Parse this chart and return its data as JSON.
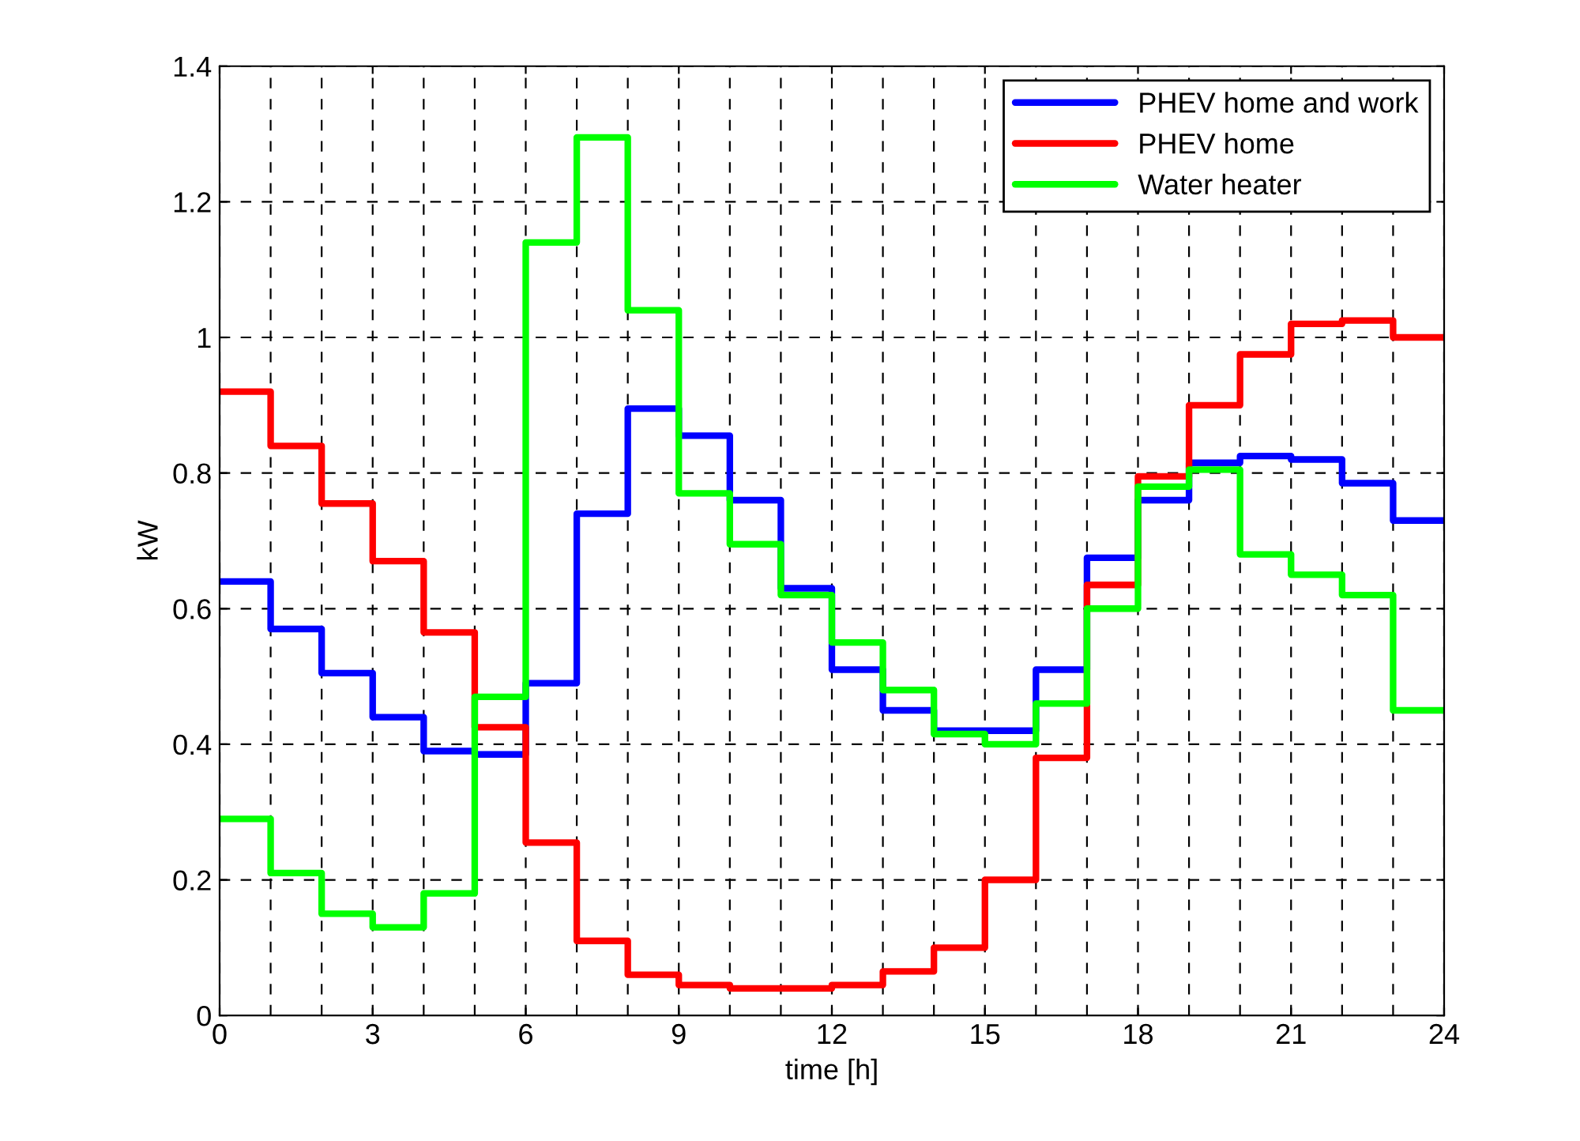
{
  "chart_data": {
    "type": "step",
    "xlabel": "time [h]",
    "ylabel": "kW",
    "x": [
      0,
      1,
      2,
      3,
      4,
      5,
      6,
      7,
      8,
      9,
      10,
      11,
      12,
      13,
      14,
      15,
      16,
      17,
      18,
      19,
      20,
      21,
      22,
      23,
      24
    ],
    "series": [
      {
        "name": "PHEV home and work",
        "color": "#0000ff",
        "values": [
          0.64,
          0.57,
          0.505,
          0.44,
          0.39,
          0.385,
          0.49,
          0.74,
          0.895,
          0.855,
          0.76,
          0.63,
          0.51,
          0.45,
          0.42,
          0.42,
          0.51,
          0.675,
          0.76,
          0.815,
          0.825,
          0.82,
          0.785,
          0.73,
          0.73
        ]
      },
      {
        "name": "PHEV home",
        "color": "#ff0000",
        "values": [
          0.92,
          0.84,
          0.755,
          0.67,
          0.565,
          0.425,
          0.255,
          0.11,
          0.06,
          0.045,
          0.04,
          0.04,
          0.045,
          0.065,
          0.1,
          0.2,
          0.38,
          0.635,
          0.795,
          0.9,
          0.975,
          1.02,
          1.025,
          1.0,
          1.0
        ]
      },
      {
        "name": "Water heater",
        "color": "#00ff00",
        "values": [
          0.29,
          0.21,
          0.15,
          0.13,
          0.18,
          0.47,
          1.14,
          1.295,
          1.04,
          0.77,
          0.695,
          0.62,
          0.55,
          0.48,
          0.415,
          0.4,
          0.46,
          0.6,
          0.78,
          0.805,
          0.68,
          0.65,
          0.62,
          0.45,
          0.45
        ]
      }
    ],
    "xlim": [
      0,
      24
    ],
    "xticks": [
      0,
      3,
      6,
      9,
      12,
      15,
      18,
      21,
      24
    ],
    "ylim": [
      0,
      1.4
    ],
    "yticks": [
      0,
      0.2,
      0.4,
      0.6,
      0.8,
      1,
      1.2,
      1.4
    ],
    "grid": true,
    "legend": "top right",
    "line_style": "solid",
    "marker": "none"
  }
}
